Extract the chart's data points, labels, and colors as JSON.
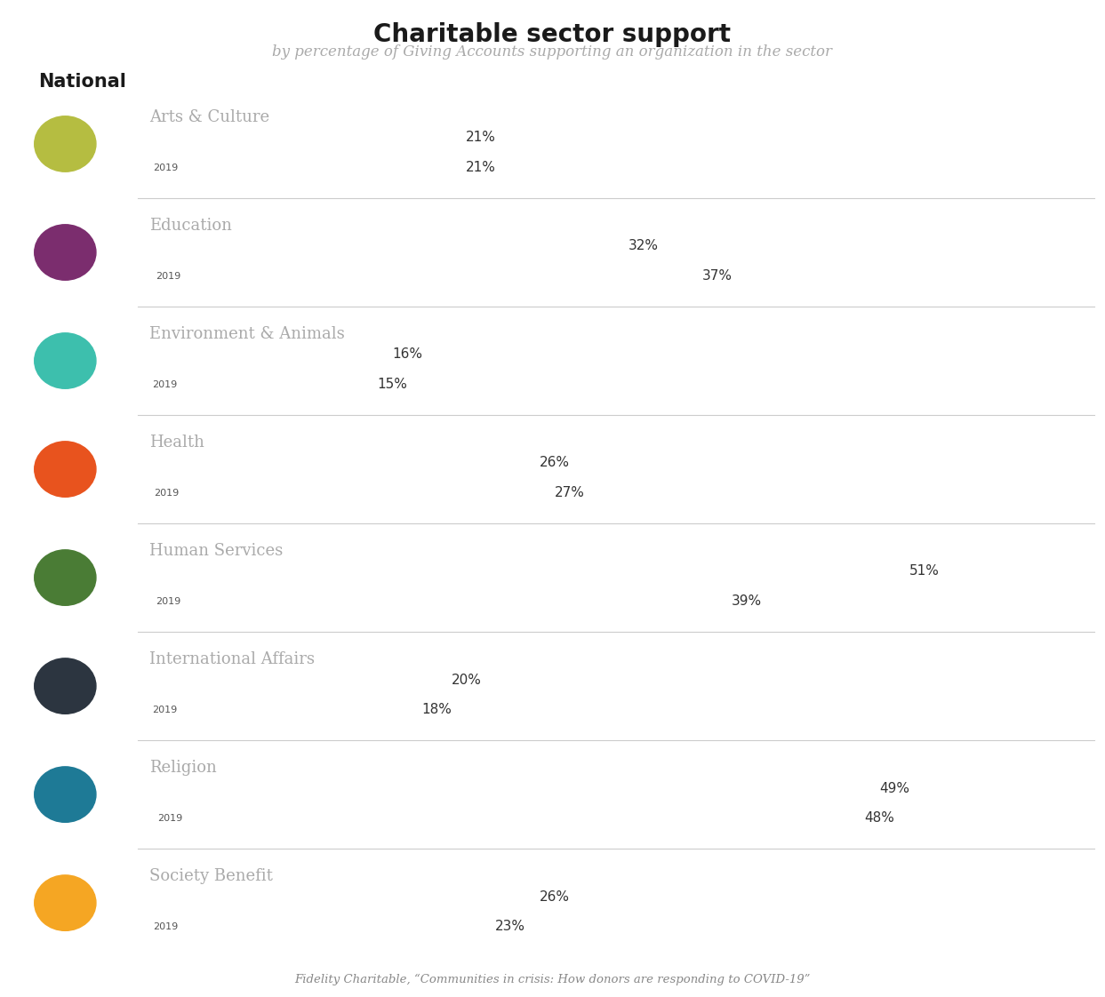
{
  "title": "Charitable sector support",
  "subtitle": "by percentage of Giving Accounts supporting an organization in the sector",
  "section": "National",
  "footnote": "Fidelity Charitable, “Communities in crisis: How donors are responding to COVID-19”",
  "categories": [
    "Arts & Culture",
    "Education",
    "Environment & Animals",
    "Health",
    "Human Services",
    "International Affairs",
    "Religion",
    "Society Benefit"
  ],
  "values_2020": [
    21,
    32,
    16,
    26,
    51,
    20,
    49,
    26
  ],
  "values_2019": [
    21,
    37,
    15,
    27,
    39,
    18,
    48,
    23
  ],
  "colors_2020": [
    "#b5bd41",
    "#7b2d6e",
    "#3dbfad",
    "#e8531e",
    "#4a7c35",
    "#2c3540",
    "#1e7a96",
    "#f5a623"
  ],
  "colors_2019": [
    "#dde38a",
    "#c99abf",
    "#a8ddd7",
    "#f5ab90",
    "#b8ceaa",
    "#a8a8a8",
    "#80c5d8",
    "#fad08a"
  ],
  "icon_colors": [
    "#b5bd41",
    "#7b2d6e",
    "#3dbfad",
    "#e8531e",
    "#4a7c35",
    "#2c3540",
    "#1e7a96",
    "#f5a623"
  ],
  "max_value": 55,
  "bar_label_color_dark": "#333333",
  "bar_text_color_light": "#ffffff",
  "bar_text_color_dark": "#555555",
  "category_title_color": "#aaaaaa",
  "separator_color": "#cccccc",
  "national_color": "#1a1a1a",
  "title_color": "#1a1a1a",
  "subtitle_color": "#aaaaaa",
  "footnote_color": "#888888"
}
